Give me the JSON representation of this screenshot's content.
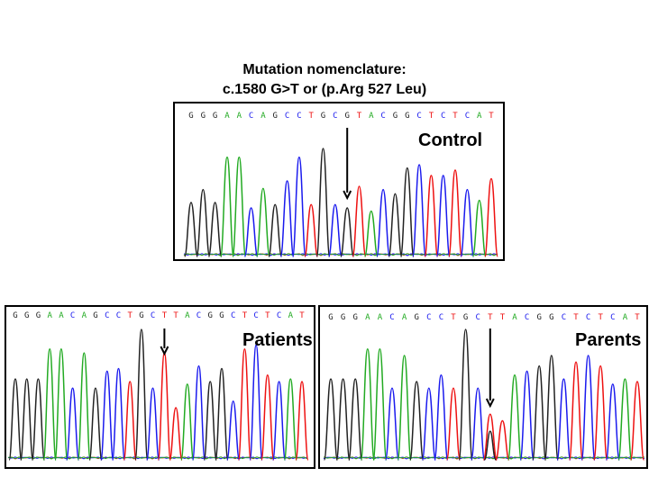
{
  "title": {
    "line1": "Mutation nomenclature:",
    "line2": "c.1580 G>T or (p.Arg 527 Leu)"
  },
  "colors": {
    "A": "#22aa22",
    "C": "#1a1aee",
    "G": "#222222",
    "T": "#ee1111"
  },
  "panels": [
    {
      "id": "control",
      "label": "Control",
      "sequence": "GGGAACAGCCTGCGTACGGCTCTCAT",
      "peak_heights": [
        0.5,
        0.62,
        0.5,
        0.92,
        0.92,
        0.45,
        0.63,
        0.48,
        0.7,
        0.92,
        0.48,
        1.0,
        0.48,
        0.45,
        0.65,
        0.42,
        0.62,
        0.58,
        0.82,
        0.85,
        0.75,
        0.75,
        0.8,
        0.62,
        0.52,
        0.72
      ],
      "arrow_index": 13
    },
    {
      "id": "patients",
      "label": "Patients",
      "sequence": "GGGAACAGCCTGCTTACGGCTCTCAT",
      "peak_heights": [
        0.62,
        0.62,
        0.62,
        0.85,
        0.85,
        0.55,
        0.82,
        0.55,
        0.68,
        0.7,
        0.6,
        1.0,
        0.55,
        0.82,
        0.4,
        0.58,
        0.72,
        0.6,
        0.7,
        0.45,
        0.85,
        0.88,
        0.65,
        0.6,
        0.62,
        0.6
      ],
      "arrow_index": 13
    },
    {
      "id": "parents",
      "label": "Parents",
      "sequence": "GGGAACAGCCTGCTTACGGCTCTCAT",
      "peak_heights": [
        0.62,
        0.62,
        0.62,
        0.85,
        0.85,
        0.55,
        0.8,
        0.6,
        0.55,
        0.65,
        0.55,
        1.0,
        0.55,
        0.35,
        0.3,
        0.65,
        0.68,
        0.72,
        0.8,
        0.62,
        0.75,
        0.8,
        0.72,
        0.58,
        0.62,
        0.6
      ],
      "arrow_index": 13
    }
  ]
}
